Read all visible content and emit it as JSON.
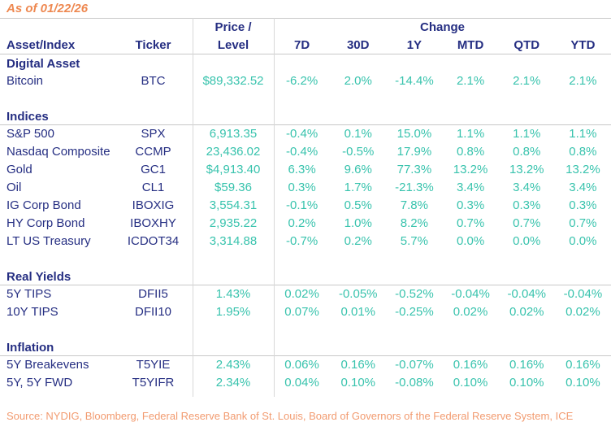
{
  "as_of": "As of 01/22/26",
  "source": "Source: NYDIG, Bloomberg, Federal Reserve Bank of St. Louis, Board of Governors of the Federal Reserve System, ICE",
  "colors": {
    "navy": "#252E82",
    "teal": "#38C3AD",
    "orange": "#EE8850",
    "source_orange": "#F29B70",
    "hline": "#C8C8C8",
    "vline": "#D8D8D8"
  },
  "chart_data": {
    "type": "table",
    "as_of": "As of 01/22/26",
    "headers": {
      "asset": "Asset/Index",
      "ticker": "Ticker",
      "price_line1": "Price /",
      "price_line2": "Level",
      "change_group": "Change",
      "periods": [
        "7D",
        "30D",
        "1Y",
        "MTD",
        "QTD",
        "YTD"
      ]
    },
    "sections": [
      {
        "name": "Digital Asset",
        "rows": [
          {
            "asset": "Bitcoin",
            "ticker": "BTC",
            "price": "$89,332.52",
            "changes": [
              "-6.2%",
              "2.0%",
              "-14.4%",
              "2.1%",
              "2.1%",
              "2.1%"
            ]
          }
        ]
      },
      {
        "name": "Indices",
        "rows": [
          {
            "asset": "S&P 500",
            "ticker": "SPX",
            "price": "6,913.35",
            "changes": [
              "-0.4%",
              "0.1%",
              "15.0%",
              "1.1%",
              "1.1%",
              "1.1%"
            ]
          },
          {
            "asset": "Nasdaq Composite",
            "ticker": "CCMP",
            "price": "23,436.02",
            "changes": [
              "-0.4%",
              "-0.5%",
              "17.9%",
              "0.8%",
              "0.8%",
              "0.8%"
            ]
          },
          {
            "asset": "Gold",
            "ticker": "GC1",
            "price": "$4,913.40",
            "changes": [
              "6.3%",
              "9.6%",
              "77.3%",
              "13.2%",
              "13.2%",
              "13.2%"
            ]
          },
          {
            "asset": "Oil",
            "ticker": "CL1",
            "price": "$59.36",
            "changes": [
              "0.3%",
              "1.7%",
              "-21.3%",
              "3.4%",
              "3.4%",
              "3.4%"
            ]
          },
          {
            "asset": "IG Corp Bond",
            "ticker": "IBOXIG",
            "price": "3,554.31",
            "changes": [
              "-0.1%",
              "0.5%",
              "7.8%",
              "0.3%",
              "0.3%",
              "0.3%"
            ]
          },
          {
            "asset": "HY Corp Bond",
            "ticker": "IBOXHY",
            "price": "2,935.22",
            "changes": [
              "0.2%",
              "1.0%",
              "8.2%",
              "0.7%",
              "0.7%",
              "0.7%"
            ]
          },
          {
            "asset": "LT US Treasury",
            "ticker": "ICDOT34",
            "price": "3,314.88",
            "changes": [
              "-0.7%",
              "0.2%",
              "5.7%",
              "0.0%",
              "0.0%",
              "0.0%"
            ]
          }
        ]
      },
      {
        "name": "Real Yields",
        "rows": [
          {
            "asset": "5Y TIPS",
            "ticker": "DFII5",
            "price": "1.43%",
            "changes": [
              "0.02%",
              "-0.05%",
              "-0.52%",
              "-0.04%",
              "-0.04%",
              "-0.04%"
            ]
          },
          {
            "asset": "10Y TIPS",
            "ticker": "DFII10",
            "price": "1.95%",
            "changes": [
              "0.07%",
              "0.01%",
              "-0.25%",
              "0.02%",
              "0.02%",
              "0.02%"
            ]
          }
        ]
      },
      {
        "name": "Inflation",
        "rows": [
          {
            "asset": "5Y Breakevens",
            "ticker": "T5YIE",
            "price": "2.43%",
            "changes": [
              "0.06%",
              "0.16%",
              "-0.07%",
              "0.16%",
              "0.16%",
              "0.16%"
            ]
          },
          {
            "asset": "5Y, 5Y FWD",
            "ticker": "T5YIFR",
            "price": "2.34%",
            "changes": [
              "0.04%",
              "0.10%",
              "-0.08%",
              "0.10%",
              "0.10%",
              "0.10%"
            ]
          }
        ]
      }
    ]
  }
}
